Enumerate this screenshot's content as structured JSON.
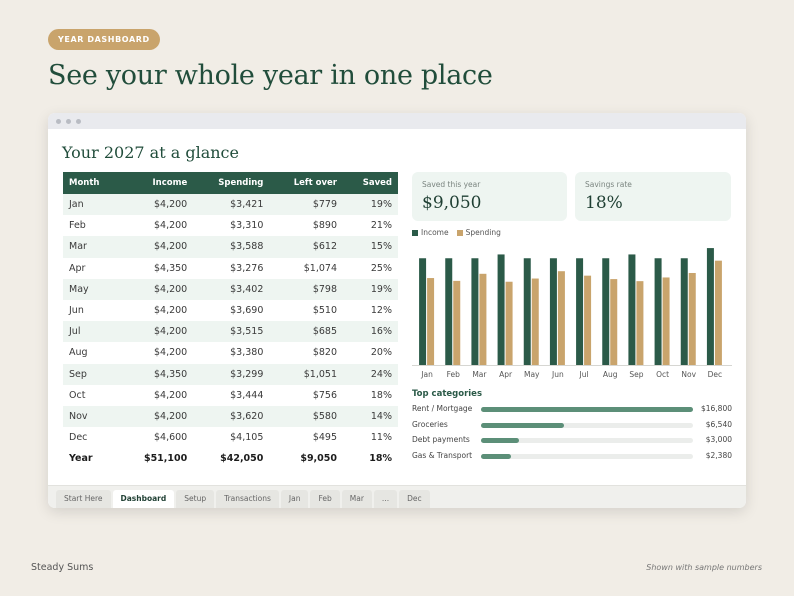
{
  "badge": "YEAR DASHBOARD",
  "headline": "See your whole year in one place",
  "sheet": {
    "title": "Your 2027 at a glance",
    "columns": [
      "Month",
      "Income",
      "Spending",
      "Left over",
      "Saved"
    ],
    "rows": [
      [
        "Jan",
        "$4,200",
        "$3,421",
        "$779",
        "19%"
      ],
      [
        "Feb",
        "$4,200",
        "$3,310",
        "$890",
        "21%"
      ],
      [
        "Mar",
        "$4,200",
        "$3,588",
        "$612",
        "15%"
      ],
      [
        "Apr",
        "$4,350",
        "$3,276",
        "$1,074",
        "25%"
      ],
      [
        "May",
        "$4,200",
        "$3,402",
        "$798",
        "19%"
      ],
      [
        "Jun",
        "$4,200",
        "$3,690",
        "$510",
        "12%"
      ],
      [
        "Jul",
        "$4,200",
        "$3,515",
        "$685",
        "16%"
      ],
      [
        "Aug",
        "$4,200",
        "$3,380",
        "$820",
        "20%"
      ],
      [
        "Sep",
        "$4,350",
        "$3,299",
        "$1,051",
        "24%"
      ],
      [
        "Oct",
        "$4,200",
        "$3,444",
        "$756",
        "18%"
      ],
      [
        "Nov",
        "$4,200",
        "$3,620",
        "$580",
        "14%"
      ],
      [
        "Dec",
        "$4,600",
        "$4,105",
        "$495",
        "11%"
      ]
    ],
    "total": [
      "Year",
      "$51,100",
      "$42,050",
      "$9,050",
      "18%"
    ]
  },
  "cards": {
    "saved_label": "Saved this year",
    "saved_value": "$9,050",
    "rate_label": "Savings rate",
    "rate_value": "18%"
  },
  "chart_data": {
    "type": "bar",
    "categories": [
      "Jan",
      "Feb",
      "Mar",
      "Apr",
      "May",
      "Jun",
      "Jul",
      "Aug",
      "Sep",
      "Oct",
      "Nov",
      "Dec"
    ],
    "series": [
      {
        "name": "Income",
        "color": "#2b5a48",
        "values": [
          4200,
          4200,
          4200,
          4350,
          4200,
          4200,
          4200,
          4200,
          4350,
          4200,
          4200,
          4600
        ]
      },
      {
        "name": "Spending",
        "color": "#c9a46c",
        "values": [
          3421,
          3310,
          3588,
          3276,
          3402,
          3690,
          3515,
          3380,
          3299,
          3444,
          3620,
          4105
        ]
      }
    ],
    "legend": "top-left"
  },
  "categories": {
    "title": "Top categories",
    "items": [
      {
        "name": "Rent / Mortgage",
        "amount": "$16,800",
        "value": 16800
      },
      {
        "name": "Groceries",
        "amount": "$6,540",
        "value": 6540
      },
      {
        "name": "Debt payments",
        "amount": "$3,000",
        "value": 3000
      },
      {
        "name": "Gas & Transport",
        "amount": "$2,380",
        "value": 2380
      }
    ]
  },
  "tabs": [
    "Start Here",
    "Dashboard",
    "Setup",
    "Transactions",
    "Jan",
    "Feb",
    "Mar",
    "...",
    "Dec"
  ],
  "active_tab": "Dashboard",
  "footer": {
    "brand": "Steady Sums",
    "note": "Shown with sample numbers"
  }
}
